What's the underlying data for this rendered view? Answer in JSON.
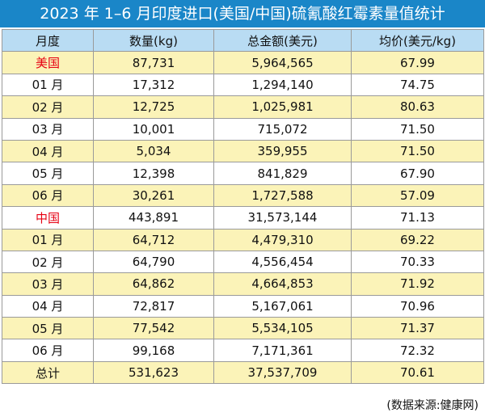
{
  "title": "2023 年 1–6 月印度进口(美国/中国)硫氰酸红霉素量值统计",
  "table": {
    "headers": [
      "月度",
      "数量(kg)",
      "总金额(美元)",
      "均价(美元/kg)"
    ],
    "rows": [
      {
        "label": "美国",
        "qty": "87,731",
        "total": "5,964,565",
        "avg": "67.99",
        "country": true,
        "shade": "yellow"
      },
      {
        "label": "01 月",
        "qty": "17,312",
        "total": "1,294,140",
        "avg": "74.75",
        "country": false,
        "shade": "white"
      },
      {
        "label": "02 月",
        "qty": "12,725",
        "total": "1,025,981",
        "avg": "80.63",
        "country": false,
        "shade": "yellow"
      },
      {
        "label": "03 月",
        "qty": "10,001",
        "total": "715,072",
        "avg": "71.50",
        "country": false,
        "shade": "white"
      },
      {
        "label": "04 月",
        "qty": "5,034",
        "total": "359,955",
        "avg": "71.50",
        "country": false,
        "shade": "yellow"
      },
      {
        "label": "05 月",
        "qty": "12,398",
        "total": "841,829",
        "avg": "67.90",
        "country": false,
        "shade": "white"
      },
      {
        "label": "06 月",
        "qty": "30,261",
        "total": "1,727,588",
        "avg": "57.09",
        "country": false,
        "shade": "yellow"
      },
      {
        "label": "中国",
        "qty": "443,891",
        "total": "31,573,144",
        "avg": "71.13",
        "country": true,
        "shade": "white"
      },
      {
        "label": "01 月",
        "qty": "64,712",
        "total": "4,479,310",
        "avg": "69.22",
        "country": false,
        "shade": "yellow"
      },
      {
        "label": "02 月",
        "qty": "64,790",
        "total": "4,556,454",
        "avg": "70.33",
        "country": false,
        "shade": "white"
      },
      {
        "label": "03 月",
        "qty": "64,862",
        "total": "4,664,853",
        "avg": "71.92",
        "country": false,
        "shade": "yellow"
      },
      {
        "label": "04 月",
        "qty": "72,817",
        "total": "5,167,061",
        "avg": "70.96",
        "country": false,
        "shade": "white"
      },
      {
        "label": "05 月",
        "qty": "77,542",
        "total": "5,534,105",
        "avg": "71.37",
        "country": false,
        "shade": "yellow"
      },
      {
        "label": "06 月",
        "qty": "99,168",
        "total": "7,171,361",
        "avg": "72.32",
        "country": false,
        "shade": "white"
      },
      {
        "label": "总计",
        "qty": "531,623",
        "total": "37,537,709",
        "avg": "70.61",
        "country": false,
        "shade": "yellow"
      }
    ]
  },
  "source": "(数据来源:健康网)",
  "colors": {
    "title_bg": "#1a86c8",
    "header_bg": "#b9dcf3",
    "row_yellow": "#fbf3b8",
    "row_white": "#ffffff",
    "country_text": "#e60012",
    "grid_line": "#9a9a9a"
  }
}
